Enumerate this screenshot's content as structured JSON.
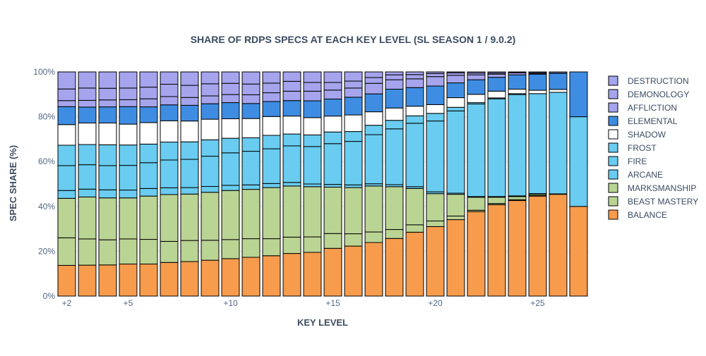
{
  "chart_data": {
    "type": "bar",
    "stacked": true,
    "title": "SHARE OF RDPS SPECS AT EACH KEY LEVEL (SL SEASON 1 / 9.0.2)",
    "xlabel": "KEY LEVEL",
    "ylabel": "SPEC SHARE (%)",
    "ylim": [
      0,
      100
    ],
    "yticks": [
      "0%",
      "20%",
      "40%",
      "60%",
      "80%",
      "100%"
    ],
    "yticks_values": [
      0,
      20,
      40,
      60,
      80,
      100
    ],
    "x": [
      2,
      3,
      4,
      5,
      6,
      7,
      8,
      9,
      10,
      11,
      12,
      13,
      14,
      15,
      16,
      17,
      18,
      19,
      20,
      21,
      22,
      23,
      24,
      25,
      26,
      27
    ],
    "xticks": [
      "+2",
      "+5",
      "+10",
      "+15",
      "+20",
      "+25"
    ],
    "xticks_values": [
      2,
      5,
      10,
      15,
      20,
      25
    ],
    "grid": true,
    "legend_position": "right",
    "series": [
      {
        "name": "BALANCE",
        "color": "#F79B4D",
        "values": [
          13.7,
          13.8,
          13.9,
          14.3,
          14.3,
          15.0,
          15.4,
          16.0,
          16.7,
          17.3,
          18.0,
          19.0,
          19.5,
          21.3,
          22.3,
          23.9,
          25.7,
          28.5,
          31.0,
          34.1,
          37.7,
          40.8,
          42.6,
          44.6,
          45.4,
          40.0
        ]
      },
      {
        "name": "BEAST MASTERY",
        "color": "#BAD494",
        "values": [
          12.3,
          11.7,
          11.2,
          11.2,
          11.0,
          9.4,
          9.4,
          8.9,
          8.5,
          8.3,
          7.6,
          7.3,
          6.9,
          6.6,
          5.5,
          4.7,
          4.0,
          3.3,
          2.5,
          1.6,
          0.6,
          0.5,
          0.4,
          0.3,
          0.2,
          0.0
        ]
      },
      {
        "name": "MARKSMANSHIP",
        "color": "#BAD494",
        "values": [
          17.6,
          18.7,
          18.7,
          18.3,
          19.3,
          20.9,
          20.7,
          21.4,
          21.9,
          22.0,
          22.8,
          22.8,
          22.4,
          20.7,
          20.6,
          20.5,
          19.1,
          16.2,
          12.2,
          9.7,
          5.8,
          2.8,
          1.4,
          0.6,
          0.0,
          0.0
        ]
      },
      {
        "name": "ARCANE",
        "color": "#69CCF0",
        "values": [
          3.5,
          3.5,
          3.6,
          3.5,
          3.4,
          3.0,
          2.9,
          2.6,
          2.3,
          2.0,
          1.8,
          1.6,
          1.2,
          1.2,
          1.2,
          1.0,
          0.9,
          0.8,
          0.8,
          0.5,
          0.3,
          0.3,
          0.3,
          0.2,
          0.0,
          0.0
        ]
      },
      {
        "name": "FIRE",
        "color": "#69CCF0",
        "values": [
          11.1,
          10.9,
          10.8,
          11.0,
          11.5,
          12.4,
          12.6,
          13.5,
          14.5,
          15.0,
          15.5,
          16.3,
          16.7,
          18.2,
          19.4,
          21.9,
          24.9,
          28.3,
          31.6,
          36.7,
          41.3,
          43.6,
          45.2,
          44.6,
          45.3,
          40.0
        ]
      },
      {
        "name": "FROST",
        "color": "#69CCF0",
        "values": [
          9.1,
          9.0,
          9.3,
          9.1,
          8.3,
          8.0,
          7.8,
          7.3,
          6.5,
          6.0,
          6.0,
          5.3,
          5.2,
          5.2,
          4.4,
          4.2,
          3.8,
          3.3,
          3.4,
          1.6,
          0.6,
          0.4,
          0.4,
          0.0,
          0.0,
          0.0
        ]
      },
      {
        "name": "SHADOW",
        "color": "#FFFFFF",
        "values": [
          9.2,
          9.6,
          9.7,
          9.3,
          9.6,
          9.5,
          9.3,
          9.2,
          8.7,
          8.6,
          8.4,
          8.0,
          7.7,
          7.1,
          7.4,
          6.0,
          5.5,
          4.3,
          3.9,
          4.3,
          3.7,
          3.0,
          2.0,
          1.5,
          1.3,
          0.0
        ]
      },
      {
        "name": "ELEMENTAL",
        "color": "#3E8DE3",
        "values": [
          8.0,
          7.1,
          7.2,
          7.8,
          7.0,
          7.1,
          7.0,
          6.9,
          7.2,
          6.7,
          6.7,
          6.9,
          7.5,
          7.6,
          7.9,
          8.0,
          8.4,
          8.3,
          8.3,
          6.6,
          6.5,
          6.2,
          6.4,
          7.2,
          7.2,
          20.0
        ]
      },
      {
        "name": "AFFLICTION",
        "color": "#A5A4ED",
        "values": [
          2.7,
          3.0,
          3.1,
          3.1,
          3.6,
          3.7,
          3.5,
          3.5,
          3.6,
          3.9,
          3.9,
          4.2,
          4.3,
          4.0,
          4.1,
          4.7,
          4.2,
          3.9,
          4.2,
          3.4,
          2.2,
          1.4,
          0.9,
          0.4,
          0.0,
          0.0
        ]
      },
      {
        "name": "DEMONOLOGY",
        "color": "#A5A4ED",
        "values": [
          5.2,
          5.5,
          5.2,
          5.2,
          5.2,
          5.5,
          5.4,
          5.4,
          5.0,
          4.8,
          4.3,
          4.4,
          3.9,
          3.4,
          3.1,
          2.6,
          2.2,
          1.9,
          1.4,
          1.1,
          0.8,
          0.5,
          0.3,
          0.2,
          0.1,
          0.0
        ]
      },
      {
        "name": "DESTRUCTION",
        "color": "#A5A4ED",
        "values": [
          7.6,
          7.2,
          7.3,
          7.2,
          6.8,
          5.5,
          6.0,
          5.3,
          5.1,
          5.4,
          5.0,
          4.2,
          4.7,
          4.7,
          4.1,
          2.5,
          1.3,
          1.2,
          0.7,
          0.4,
          0.5,
          0.5,
          0.1,
          0.4,
          0.5,
          0.0
        ]
      }
    ]
  }
}
